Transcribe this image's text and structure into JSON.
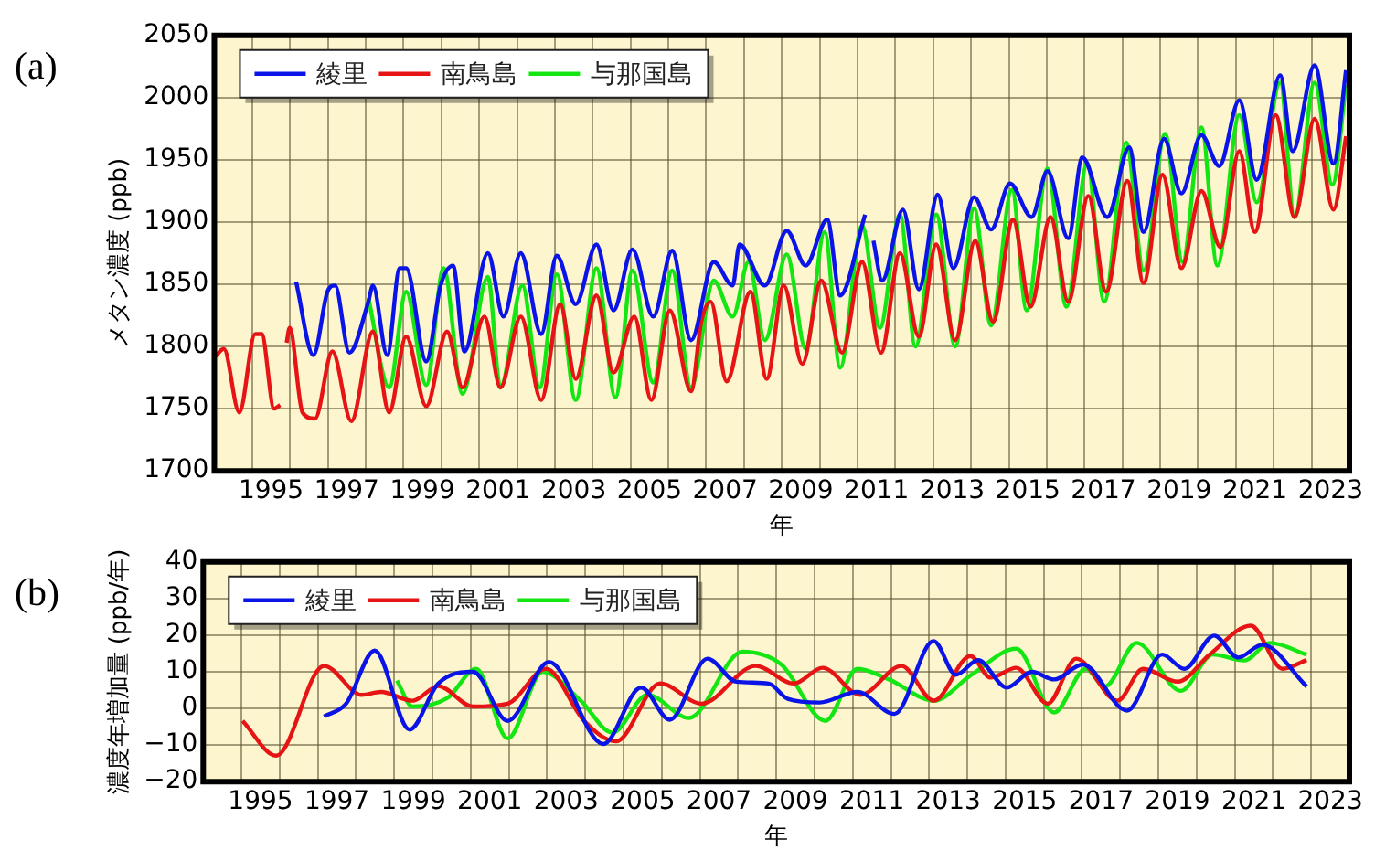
{
  "chart_data": [
    {
      "type": "line",
      "title": "(a)",
      "xlabel": "年",
      "ylabel": "メタン濃度 (ppb)",
      "xlim": [
        1994,
        2024
      ],
      "xticks": [
        {
          "value": 1994,
          "label": null
        },
        {
          "value": 1995,
          "label": null
        },
        {
          "value": 1995.5,
          "label": "1995"
        },
        {
          "value": 1996,
          "label": null
        },
        {
          "value": 1997,
          "label": null
        },
        {
          "value": 1997.5,
          "label": "1997"
        },
        {
          "value": 1998,
          "label": null
        },
        {
          "value": 1999,
          "label": null
        },
        {
          "value": 1999.5,
          "label": "1999"
        },
        {
          "value": 2000,
          "label": null
        },
        {
          "value": 2001,
          "label": null
        },
        {
          "value": 2001.5,
          "label": "2001"
        },
        {
          "value": 2002,
          "label": null
        },
        {
          "value": 2003,
          "label": null
        },
        {
          "value": 2003.5,
          "label": "2003"
        },
        {
          "value": 2004,
          "label": null
        },
        {
          "value": 2005,
          "label": null
        },
        {
          "value": 2005.5,
          "label": "2005"
        },
        {
          "value": 2006,
          "label": null
        },
        {
          "value": 2007,
          "label": null
        },
        {
          "value": 2007.5,
          "label": "2007"
        },
        {
          "value": 2008,
          "label": null
        },
        {
          "value": 2009,
          "label": null
        },
        {
          "value": 2009.5,
          "label": "2009"
        },
        {
          "value": 2010,
          "label": null
        },
        {
          "value": 2011,
          "label": null
        },
        {
          "value": 2011.5,
          "label": "2011"
        },
        {
          "value": 2012,
          "label": null
        },
        {
          "value": 2013,
          "label": null
        },
        {
          "value": 2013.5,
          "label": "2013"
        },
        {
          "value": 2014,
          "label": null
        },
        {
          "value": 2015,
          "label": null
        },
        {
          "value": 2015.5,
          "label": "2015"
        },
        {
          "value": 2016,
          "label": null
        },
        {
          "value": 2017,
          "label": null
        },
        {
          "value": 2017.5,
          "label": "2017"
        },
        {
          "value": 2018,
          "label": null
        },
        {
          "value": 2019,
          "label": null
        },
        {
          "value": 2019.5,
          "label": "2019"
        },
        {
          "value": 2020,
          "label": null
        },
        {
          "value": 2021,
          "label": null
        },
        {
          "value": 2021.5,
          "label": "2021"
        },
        {
          "value": 2022,
          "label": null
        },
        {
          "value": 2023,
          "label": null
        },
        {
          "value": 2023.5,
          "label": "2023"
        },
        {
          "value": 2024,
          "label": null
        }
      ],
      "ylim": [
        1700,
        2050
      ],
      "yticks": [
        1700,
        1750,
        1800,
        1850,
        1900,
        1950,
        2000,
        2050
      ],
      "grid": true,
      "legend": "top left",
      "marker": "none",
      "line_style": "solid",
      "series": [
        {
          "name": "綾里",
          "color": "#0a14e6",
          "x": [
            1996.16,
            1996.62,
            1996.99,
            1997.19,
            1997.57,
            1998.07,
            1998.19,
            1998.57,
            1998.9,
            1999.07,
            1999.6,
            1999.98,
            2000.31,
            2000.61,
            2001.23,
            2001.64,
            2002.1,
            2002.64,
            2003.05,
            2003.55,
            2004.1,
            2004.55,
            2005.05,
            2005.6,
            2006.1,
            2006.6,
            2007.2,
            2007.7,
            2007.88,
            2008.55,
            2009.13,
            2009.63,
            2010.2,
            2010.54,
            2011.2,
            2011.3,
            2011.42,
            2011.65,
            2012.2,
            2012.62,
            2013.12,
            2013.53,
            2014.08,
            2014.53,
            2015.03,
            2015.6,
            2016.02,
            2016.57,
            2016.94,
            2017.6,
            2018.18,
            2018.56,
            2019.1,
            2019.56,
            2020.09,
            2020.56,
            2021.09,
            2021.55,
            2022.17,
            2022.5,
            2023.08,
            2023.58,
            2023.91
          ],
          "values": [
            1852,
            1793,
            1844,
            1849,
            1795,
            1836,
            1849,
            1793,
            1863,
            1863,
            1788,
            1849,
            1865,
            1796,
            1875,
            1824,
            1875,
            1810,
            1873,
            1834,
            1882,
            1829,
            1878,
            1824,
            1877,
            1805,
            1868,
            1849,
            1882,
            1849,
            1893,
            1865,
            1902,
            1841,
            1906,
            null,
            1885,
            1853,
            1910,
            1846,
            1922,
            1863,
            1920,
            1894,
            1931,
            1904,
            1941,
            1887,
            1952,
            1904,
            1960,
            1892,
            1967,
            1923,
            1970,
            1945,
            1998,
            1934,
            2018,
            1957,
            2026,
            1947,
            2022
          ]
        },
        {
          "name": "南鳥島",
          "color": "#e61414",
          "x": [
            1994.0,
            1994.25,
            1994.66,
            1995.08,
            1995.25,
            1995.58,
            1995.74,
            1995.82,
            1995.91,
            1995.99,
            1996.33,
            1996.66,
            1997.12,
            1997.62,
            1998.19,
            1998.62,
            1999.07,
            1999.6,
            2000.15,
            2000.56,
            2001.14,
            2001.56,
            2002.1,
            2002.64,
            2003.14,
            2003.55,
            2004.1,
            2004.55,
            2005.1,
            2005.55,
            2006.04,
            2006.6,
            2006.87,
            2007.12,
            2007.54,
            2008.17,
            2008.6,
            2009.05,
            2009.54,
            2010.04,
            2010.59,
            2011.12,
            2011.62,
            2012.12,
            2012.62,
            2013.08,
            2013.58,
            2014.11,
            2014.58,
            2015.11,
            2015.57,
            2016.1,
            2016.57,
            2017.1,
            2017.57,
            2018.13,
            2018.56,
            2019.06,
            2019.56,
            2020.09,
            2020.59,
            2021.09,
            2021.5,
            2022.05,
            2022.55,
            2023.08,
            2023.58,
            2023.91
          ],
          "values": [
            1791,
            1798,
            1747,
            1810,
            1810,
            1750,
            1753,
            null,
            1803,
            1815,
            1747,
            1742,
            1796,
            1740,
            1812,
            1747,
            1808,
            1752,
            1812,
            1767,
            1824,
            1767,
            1824,
            1757,
            1834,
            1774,
            1841,
            1779,
            1824,
            1757,
            1829,
            1764,
            1820,
            1836,
            1772,
            1844,
            1774,
            1849,
            1786,
            1853,
            1795,
            1868,
            1795,
            1875,
            1808,
            1882,
            1805,
            1885,
            1820,
            1902,
            1832,
            1904,
            1836,
            1921,
            1844,
            1933,
            1851,
            1938,
            1863,
            1925,
            1880,
            1957,
            1892,
            1986,
            1904,
            1983,
            1910,
            1969
          ]
        },
        {
          "name": "与那国島",
          "color": "#14e614",
          "x": [
            1998.07,
            1998.62,
            1999.07,
            1999.6,
            2000.06,
            2000.56,
            2001.23,
            2001.56,
            2002.14,
            2002.6,
            2003.05,
            2003.55,
            2004.1,
            2004.6,
            2005.05,
            2005.6,
            2006.1,
            2006.6,
            2007.2,
            2007.7,
            2008.12,
            2008.55,
            2009.13,
            2009.63,
            2010.13,
            2010.54,
            2011.12,
            2011.59,
            2012.12,
            2012.53,
            2013.08,
            2013.58,
            2014.08,
            2014.53,
            2015.08,
            2015.47,
            2016.02,
            2016.52,
            2017.07,
            2017.52,
            2018.1,
            2018.56,
            2019.13,
            2019.59,
            2020.09,
            2020.51,
            2021.09,
            2021.55,
            2022.17,
            2022.55,
            2023.08,
            2023.55,
            2023.91
          ],
          "values": [
            1839,
            1767,
            1844,
            1769,
            1863,
            1762,
            1856,
            1767,
            1849,
            1767,
            1858,
            1757,
            1863,
            1759,
            1861,
            1771,
            1861,
            1767,
            1853,
            1824,
            1868,
            1805,
            1874,
            1798,
            1892,
            1783,
            1897,
            1815,
            1906,
            1800,
            1906,
            1800,
            1911,
            1817,
            1926,
            1829,
            1943,
            1832,
            1947,
            1836,
            1964,
            1861,
            1971,
            1868,
            1976,
            1865,
            1986,
            1916,
            2012,
            1904,
            2012,
            1930,
            2010
          ]
        }
      ]
    },
    {
      "type": "line",
      "title": "(b)",
      "xlabel": "年",
      "ylabel": "濃度年増加量 (ppb/年)",
      "xlim": [
        1994,
        2024
      ],
      "xticks": [
        {
          "value": 1994,
          "label": null
        },
        {
          "value": 1995,
          "label": null
        },
        {
          "value": 1995.5,
          "label": "1995"
        },
        {
          "value": 1996,
          "label": null
        },
        {
          "value": 1997,
          "label": null
        },
        {
          "value": 1997.5,
          "label": "1997"
        },
        {
          "value": 1998,
          "label": null
        },
        {
          "value": 1999,
          "label": null
        },
        {
          "value": 1999.5,
          "label": "1999"
        },
        {
          "value": 2000,
          "label": null
        },
        {
          "value": 2001,
          "label": null
        },
        {
          "value": 2001.5,
          "label": "2001"
        },
        {
          "value": 2002,
          "label": null
        },
        {
          "value": 2003,
          "label": null
        },
        {
          "value": 2003.5,
          "label": "2003"
        },
        {
          "value": 2004,
          "label": null
        },
        {
          "value": 2005,
          "label": null
        },
        {
          "value": 2005.5,
          "label": "2005"
        },
        {
          "value": 2006,
          "label": null
        },
        {
          "value": 2007,
          "label": null
        },
        {
          "value": 2007.5,
          "label": "2007"
        },
        {
          "value": 2008,
          "label": null
        },
        {
          "value": 2009,
          "label": null
        },
        {
          "value": 2009.5,
          "label": "2009"
        },
        {
          "value": 2010,
          "label": null
        },
        {
          "value": 2011,
          "label": null
        },
        {
          "value": 2011.5,
          "label": "2011"
        },
        {
          "value": 2012,
          "label": null
        },
        {
          "value": 2013,
          "label": null
        },
        {
          "value": 2013.5,
          "label": "2013"
        },
        {
          "value": 2014,
          "label": null
        },
        {
          "value": 2015,
          "label": null
        },
        {
          "value": 2015.5,
          "label": "2015"
        },
        {
          "value": 2016,
          "label": null
        },
        {
          "value": 2017,
          "label": null
        },
        {
          "value": 2017.5,
          "label": "2017"
        },
        {
          "value": 2018,
          "label": null
        },
        {
          "value": 2019,
          "label": null
        },
        {
          "value": 2019.5,
          "label": "2019"
        },
        {
          "value": 2020,
          "label": null
        },
        {
          "value": 2021,
          "label": null
        },
        {
          "value": 2021.5,
          "label": "2021"
        },
        {
          "value": 2022,
          "label": null
        },
        {
          "value": 2023,
          "label": null
        },
        {
          "value": 2023.5,
          "label": "2023"
        },
        {
          "value": 2024,
          "label": null
        }
      ],
      "ylim": [
        -20,
        40
      ],
      "yticks": [
        -20,
        -10,
        0,
        10,
        20,
        30,
        40
      ],
      "grid": true,
      "legend": "top left",
      "marker": "none",
      "line_style": "solid",
      "series": [
        {
          "name": "綾里",
          "color": "#0a14e6",
          "x": [
            1997.16,
            1997.74,
            1998.49,
            1999.4,
            2000.15,
            2001.06,
            2001.97,
            2003.05,
            2004.47,
            2005.46,
            2006.21,
            2007.2,
            2007.95,
            2008.8,
            2009.3,
            2010.13,
            2011.12,
            2012.09,
            2013.12,
            2013.7,
            2014.28,
            2015.03,
            2015.69,
            2016.27,
            2017.02,
            2018.18,
            2019.1,
            2019.68,
            2020.46,
            2021.09,
            2021.72,
            2022.88
          ],
          "values": [
            -2.2,
            1.3,
            15.8,
            -5.8,
            6.8,
            10,
            -3.4,
            12.7,
            -9.7,
            5.7,
            -3.1,
            13.6,
            7.3,
            6.8,
            2.6,
            1.6,
            4.5,
            -1.5,
            18.4,
            9.2,
            13.2,
            5.7,
            10,
            7.9,
            12,
            -0.6,
            14.7,
            10.8,
            19.9,
            13.9,
            17.4,
            6
          ]
        },
        {
          "name": "南鳥島",
          "color": "#e61414",
          "x": [
            1995.03,
            1995.91,
            1997.16,
            1998.15,
            1998.65,
            1999.48,
            2000.15,
            2001.06,
            2001.97,
            2002.97,
            2003.97,
            2004.8,
            2005.96,
            2007.04,
            2008.46,
            2009.46,
            2010.21,
            2011.2,
            2012.28,
            2013.12,
            2014.08,
            2014.61,
            2015.28,
            2016.1,
            2016.85,
            2017.93,
            2018.6,
            2019.51,
            2020.34,
            2021.42,
            2022.25,
            2022.88
          ],
          "values": [
            -3.4,
            -12.9,
            11.6,
            3.7,
            4.5,
            2.1,
            6.1,
            0.5,
            1.3,
            10.8,
            -3.4,
            -9,
            6.8,
            1.3,
            11.6,
            6.8,
            11.1,
            3.7,
            11.6,
            2.1,
            14.3,
            8.4,
            11.1,
            1.3,
            13.6,
            2.1,
            10.8,
            7.3,
            14.7,
            22.6,
            10.8,
            13.2
          ]
        },
        {
          "name": "与那国島",
          "color": "#14e614",
          "x": [
            1999.07,
            1999.48,
            2000.4,
            2001.14,
            2001.97,
            2002.88,
            2003.88,
            2004.71,
            2005.63,
            2006.71,
            2008.12,
            2009.13,
            2010.29,
            2011.12,
            2011.95,
            2013.12,
            2014.11,
            2015.28,
            2016.27,
            2017.1,
            2017.6,
            2018.43,
            2019.59,
            2020.42,
            2021.25,
            2021.92,
            2022.88
          ],
          "values": [
            7.6,
            0.5,
            2.9,
            10.8,
            -8.2,
            10,
            2.1,
            -6.6,
            3.7,
            -2.6,
            15.5,
            12,
            -3.4,
            10.8,
            7.9,
            2.1,
            9.2,
            16.3,
            -1.1,
            10.8,
            6,
            17.9,
            4.8,
            14.7,
            13.1,
            17.9,
            14.7
          ]
        }
      ]
    }
  ]
}
